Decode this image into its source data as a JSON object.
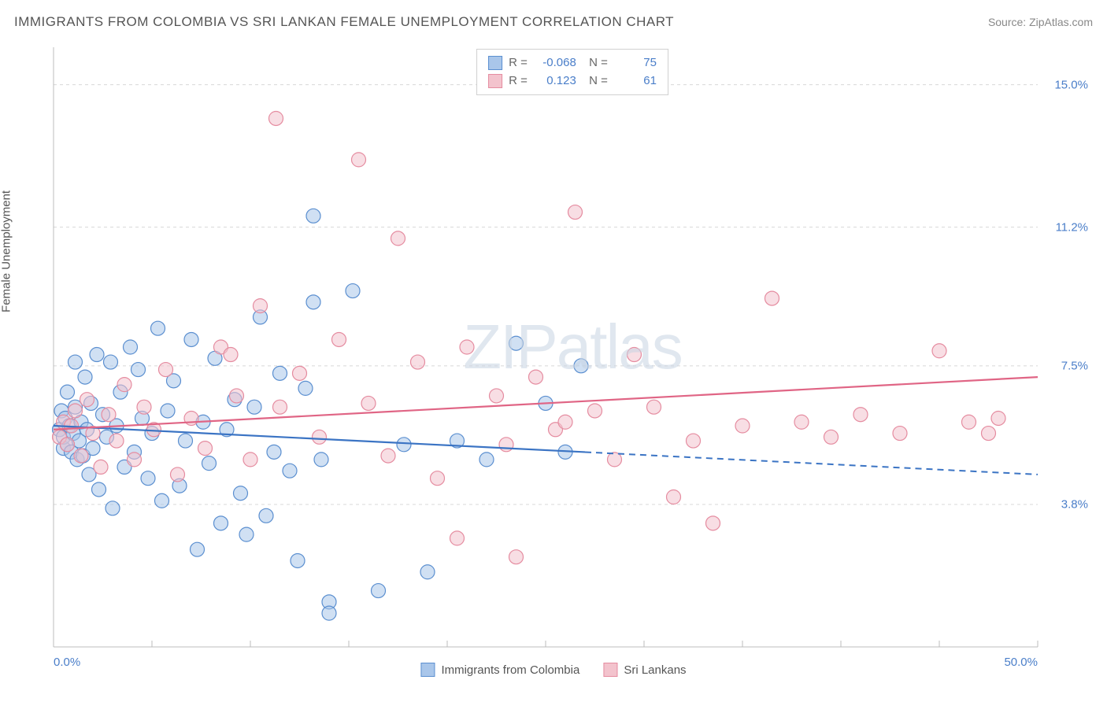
{
  "title": "IMMIGRANTS FROM COLOMBIA VS SRI LANKAN FEMALE UNEMPLOYMENT CORRELATION CHART",
  "source": "Source: ZipAtlas.com",
  "ylabel": "Female Unemployment",
  "watermark": "ZIPatlas",
  "chart": {
    "type": "scatter",
    "xlim": [
      0,
      50
    ],
    "ylim": [
      0,
      16
    ],
    "x_ticks_minor": [
      0,
      5,
      10,
      15,
      20,
      25,
      30,
      35,
      40,
      45,
      50
    ],
    "y_grid": [
      3.8,
      7.5,
      11.2,
      15.0
    ],
    "x_axis_labels": [
      {
        "v": 0.0,
        "label": "0.0%"
      },
      {
        "v": 50.0,
        "label": "50.0%"
      }
    ],
    "y_axis_labels": [
      {
        "v": 3.8,
        "label": "3.8%"
      },
      {
        "v": 7.5,
        "label": "7.5%"
      },
      {
        "v": 11.2,
        "label": "11.2%"
      },
      {
        "v": 15.0,
        "label": "15.0%"
      }
    ],
    "background_color": "#ffffff",
    "grid_color": "#d8d8d8",
    "axis_color": "#bcbcbc",
    "marker_radius": 9,
    "marker_opacity": 0.55,
    "series": [
      {
        "key": "colombia",
        "label": "Immigrants from Colombia",
        "fill": "#a9c6ea",
        "stroke": "#5b8fd0",
        "line_color": "#3b74c4",
        "R": "-0.068",
        "N": "75",
        "trend": {
          "x1": 0,
          "y1": 5.9,
          "x2": 50,
          "y2": 4.6,
          "solid_until_x": 27
        },
        "points": [
          [
            0.3,
            5.8
          ],
          [
            0.4,
            6.3
          ],
          [
            0.5,
            5.3
          ],
          [
            0.5,
            5.6
          ],
          [
            0.6,
            6.1
          ],
          [
            0.7,
            5.4
          ],
          [
            0.7,
            6.8
          ],
          [
            0.8,
            5.9
          ],
          [
            0.9,
            5.2
          ],
          [
            1.0,
            5.7
          ],
          [
            1.1,
            6.4
          ],
          [
            1.1,
            7.6
          ],
          [
            1.2,
            5.0
          ],
          [
            1.3,
            5.5
          ],
          [
            1.4,
            6.0
          ],
          [
            1.5,
            5.1
          ],
          [
            1.6,
            7.2
          ],
          [
            1.7,
            5.8
          ],
          [
            1.8,
            4.6
          ],
          [
            1.9,
            6.5
          ],
          [
            2.0,
            5.3
          ],
          [
            2.2,
            7.8
          ],
          [
            2.3,
            4.2
          ],
          [
            2.5,
            6.2
          ],
          [
            2.7,
            5.6
          ],
          [
            2.9,
            7.6
          ],
          [
            3.0,
            3.7
          ],
          [
            3.2,
            5.9
          ],
          [
            3.4,
            6.8
          ],
          [
            3.6,
            4.8
          ],
          [
            3.9,
            8.0
          ],
          [
            4.1,
            5.2
          ],
          [
            4.3,
            7.4
          ],
          [
            4.5,
            6.1
          ],
          [
            4.8,
            4.5
          ],
          [
            5.0,
            5.7
          ],
          [
            5.3,
            8.5
          ],
          [
            5.5,
            3.9
          ],
          [
            5.8,
            6.3
          ],
          [
            6.1,
            7.1
          ],
          [
            6.4,
            4.3
          ],
          [
            6.7,
            5.5
          ],
          [
            7.0,
            8.2
          ],
          [
            7.3,
            2.6
          ],
          [
            7.6,
            6.0
          ],
          [
            7.9,
            4.9
          ],
          [
            8.2,
            7.7
          ],
          [
            8.5,
            3.3
          ],
          [
            8.8,
            5.8
          ],
          [
            9.2,
            6.6
          ],
          [
            9.5,
            4.1
          ],
          [
            9.8,
            3.0
          ],
          [
            10.2,
            6.4
          ],
          [
            10.5,
            8.8
          ],
          [
            10.8,
            3.5
          ],
          [
            11.2,
            5.2
          ],
          [
            11.5,
            7.3
          ],
          [
            12.0,
            4.7
          ],
          [
            12.4,
            2.3
          ],
          [
            12.8,
            6.9
          ],
          [
            13.2,
            9.2
          ],
          [
            13.2,
            11.5
          ],
          [
            13.6,
            5.0
          ],
          [
            14.0,
            1.2
          ],
          [
            14.0,
            0.9
          ],
          [
            15.2,
            9.5
          ],
          [
            16.5,
            1.5
          ],
          [
            17.8,
            5.4
          ],
          [
            19.0,
            2.0
          ],
          [
            20.5,
            5.5
          ],
          [
            22.0,
            5.0
          ],
          [
            23.5,
            8.1
          ],
          [
            25.0,
            6.5
          ],
          [
            26.0,
            5.2
          ],
          [
            26.8,
            7.5
          ]
        ]
      },
      {
        "key": "srilanka",
        "label": "Sri Lankans",
        "fill": "#f3c3cd",
        "stroke": "#e58ca0",
        "line_color": "#e06585",
        "R": "0.123",
        "N": "61",
        "trend": {
          "x1": 0,
          "y1": 5.8,
          "x2": 50,
          "y2": 7.2,
          "solid_until_x": 50
        },
        "points": [
          [
            0.3,
            5.6
          ],
          [
            0.5,
            6.0
          ],
          [
            0.7,
            5.4
          ],
          [
            0.9,
            5.9
          ],
          [
            1.1,
            6.3
          ],
          [
            1.4,
            5.1
          ],
          [
            1.7,
            6.6
          ],
          [
            2.0,
            5.7
          ],
          [
            2.4,
            4.8
          ],
          [
            2.8,
            6.2
          ],
          [
            3.2,
            5.5
          ],
          [
            3.6,
            7.0
          ],
          [
            4.1,
            5.0
          ],
          [
            4.6,
            6.4
          ],
          [
            5.1,
            5.8
          ],
          [
            5.7,
            7.4
          ],
          [
            6.3,
            4.6
          ],
          [
            7.0,
            6.1
          ],
          [
            7.7,
            5.3
          ],
          [
            8.5,
            8.0
          ],
          [
            9.0,
            7.8
          ],
          [
            9.3,
            6.7
          ],
          [
            10.0,
            5.0
          ],
          [
            10.5,
            9.1
          ],
          [
            11.3,
            14.1
          ],
          [
            11.5,
            6.4
          ],
          [
            12.5,
            7.3
          ],
          [
            13.5,
            5.6
          ],
          [
            14.5,
            8.2
          ],
          [
            15.5,
            13.0
          ],
          [
            16.0,
            6.5
          ],
          [
            17.0,
            5.1
          ],
          [
            17.5,
            10.9
          ],
          [
            18.5,
            7.6
          ],
          [
            19.5,
            4.5
          ],
          [
            20.5,
            2.9
          ],
          [
            21.0,
            8.0
          ],
          [
            22.5,
            6.7
          ],
          [
            23.0,
            5.4
          ],
          [
            23.5,
            2.4
          ],
          [
            24.5,
            7.2
          ],
          [
            25.5,
            5.8
          ],
          [
            26.0,
            6.0
          ],
          [
            26.5,
            11.6
          ],
          [
            27.5,
            6.3
          ],
          [
            28.5,
            5.0
          ],
          [
            29.5,
            7.8
          ],
          [
            30.5,
            6.4
          ],
          [
            31.5,
            4.0
          ],
          [
            32.5,
            5.5
          ],
          [
            33.5,
            3.3
          ],
          [
            35.0,
            5.9
          ],
          [
            36.5,
            9.3
          ],
          [
            38.0,
            6.0
          ],
          [
            39.5,
            5.6
          ],
          [
            41.0,
            6.2
          ],
          [
            43.0,
            5.7
          ],
          [
            45.0,
            7.9
          ],
          [
            46.5,
            6.0
          ],
          [
            47.5,
            5.7
          ],
          [
            48.0,
            6.1
          ]
        ]
      }
    ]
  }
}
